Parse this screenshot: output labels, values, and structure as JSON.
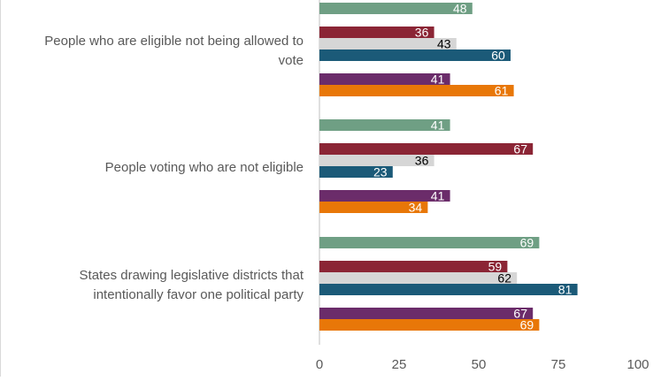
{
  "chart_data": {
    "type": "bar",
    "orientation": "horizontal",
    "categories": [
      "People who are eligible not being allowed to vote",
      "People voting who are not eligible",
      "States drawing legislative districts that intentionally favor one political party"
    ],
    "category_lines": [
      [
        "People who are eligible not being allowed to",
        "vote"
      ],
      [
        "People voting who are not eligible"
      ],
      [
        "States drawing legislative districts that",
        "intentionally favor one political party"
      ]
    ],
    "series": [
      {
        "color": "#6f9f84",
        "label_color": "#ffffff",
        "values": [
          48,
          41,
          69
        ]
      },
      {
        "color": "#8b2535",
        "label_color": "#ffffff",
        "values": [
          36,
          67,
          59
        ]
      },
      {
        "color": "#d6d6d6",
        "label_color": "#000000",
        "values": [
          43,
          36,
          62
        ]
      },
      {
        "color": "#1b5a78",
        "label_color": "#ffffff",
        "values": [
          60,
          23,
          81
        ]
      },
      {
        "color": "#6b2c6a",
        "label_color": "#ffffff",
        "values": [
          41,
          41,
          67
        ]
      },
      {
        "color": "#e87708",
        "label_color": "#ffffff",
        "values": [
          61,
          34,
          69
        ]
      }
    ],
    "xlim": [
      0,
      100
    ],
    "xticks": [
      "0",
      "25",
      "50",
      "75",
      "100"
    ],
    "grid": false,
    "legend": "none"
  }
}
